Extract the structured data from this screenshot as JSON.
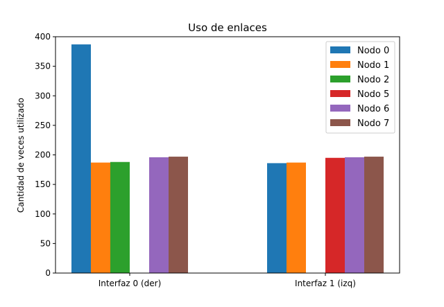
{
  "chart_data": {
    "type": "bar",
    "title": "Uso de enlaces",
    "xlabel": "",
    "ylabel": "Cantidad de veces utilizado",
    "categories": [
      "Interfaz 0 (der)",
      "Interfaz 1 (izq)"
    ],
    "ylim": [
      0,
      400
    ],
    "yticks": [
      0,
      50,
      100,
      150,
      200,
      250,
      300,
      350,
      400
    ],
    "grid": false,
    "legend_position": "top-right",
    "series": [
      {
        "name": "Nodo 0",
        "color": "#1f77b4",
        "values": [
          387,
          186
        ]
      },
      {
        "name": "Nodo 1",
        "color": "#ff7f0e",
        "values": [
          187,
          187
        ]
      },
      {
        "name": "Nodo 2",
        "color": "#2ca02c",
        "values": [
          188,
          0
        ]
      },
      {
        "name": "Nodo 5",
        "color": "#d62728",
        "values": [
          0,
          195
        ]
      },
      {
        "name": "Nodo 6",
        "color": "#9467bd",
        "values": [
          196,
          196
        ]
      },
      {
        "name": "Nodo 7",
        "color": "#8c564b",
        "values": [
          197,
          197
        ]
      }
    ]
  }
}
